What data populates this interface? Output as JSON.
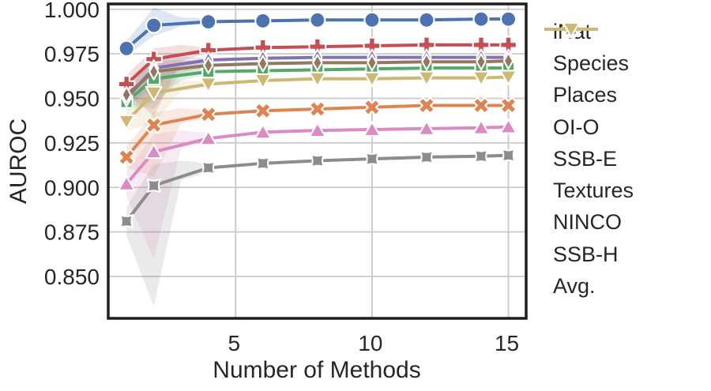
{
  "figure": {
    "background": "#ffffff"
  },
  "styles": {
    "grid_color": "#c9c9c9",
    "spine_color": "#1f1f1f",
    "text_color": "#262626",
    "marker_edge_color": "#ffffff",
    "band_opacity": 0.18,
    "line_width": 4
  },
  "chart_data": {
    "type": "line",
    "title": "",
    "xlabel": "Number of Methods",
    "ylabel": "AUROC",
    "grid": true,
    "legend_position": "right-outside",
    "xlim": [
      0.33,
      15.65
    ],
    "ylim": [
      0.8265,
      1.003
    ],
    "x": [
      1,
      2,
      4,
      6,
      8,
      10,
      12,
      14,
      15
    ],
    "xticks": [
      {
        "v": 5,
        "label": "5"
      },
      {
        "v": 10,
        "label": "10"
      },
      {
        "v": 15,
        "label": "15"
      }
    ],
    "yticks": [
      {
        "v": 0.85,
        "label": "0.850"
      },
      {
        "v": 0.875,
        "label": "0.875"
      },
      {
        "v": 0.9,
        "label": "0.900"
      },
      {
        "v": 0.925,
        "label": "0.925"
      },
      {
        "v": 0.95,
        "label": "0.950"
      },
      {
        "v": 0.975,
        "label": "0.975"
      },
      {
        "v": 1.0,
        "label": "1.000"
      }
    ],
    "series": [
      {
        "name": "iNat",
        "color": "#4C72B0",
        "marker": "circle",
        "values": [
          0.978,
          0.991,
          0.993,
          0.9935,
          0.994,
          0.994,
          0.994,
          0.9945,
          0.9945
        ],
        "band": {
          "x": [
            1,
            2,
            3,
            4
          ],
          "lo": [
            0.974,
            0.985,
            0.9905,
            0.9923
          ],
          "hi": [
            0.982,
            1.001,
            0.9955,
            0.9947
          ]
        }
      },
      {
        "name": "Species",
        "color": "#DD8452",
        "marker": "x",
        "values": [
          0.917,
          0.935,
          0.941,
          0.943,
          0.944,
          0.945,
          0.946,
          0.946,
          0.946
        ],
        "band": {
          "x": [
            1,
            2,
            3,
            4
          ],
          "lo": [
            0.911,
            0.906,
            0.936,
            0.939
          ],
          "hi": [
            0.923,
            0.942,
            0.9445,
            0.9435
          ]
        }
      },
      {
        "name": "Places",
        "color": "#55A868",
        "marker": "square",
        "values": [
          0.948,
          0.961,
          0.965,
          0.9655,
          0.966,
          0.9665,
          0.967,
          0.967,
          0.967
        ],
        "band": {
          "x": [
            1,
            2,
            3,
            4
          ],
          "lo": [
            0.943,
            0.948,
            0.96,
            0.9635
          ],
          "hi": [
            0.953,
            0.966,
            0.968,
            0.9665
          ]
        }
      },
      {
        "name": "OI-O",
        "color": "#C44E52",
        "marker": "plus",
        "values": [
          0.958,
          0.972,
          0.977,
          0.9785,
          0.979,
          0.9795,
          0.98,
          0.98,
          0.98
        ],
        "band": {
          "x": [
            1,
            2,
            3,
            4
          ],
          "lo": [
            0.953,
            0.94,
            0.971,
            0.9755
          ],
          "hi": [
            0.963,
            0.978,
            0.98,
            0.9785
          ]
        }
      },
      {
        "name": "SSB-E",
        "color": "#8172B3",
        "marker": "thin-diamond",
        "values": [
          0.95,
          0.967,
          0.9715,
          0.9725,
          0.973,
          0.973,
          0.973,
          0.973,
          0.973
        ],
        "band": {
          "x": [
            1,
            2,
            3,
            4
          ],
          "lo": [
            0.945,
            0.956,
            0.9665,
            0.9695
          ],
          "hi": [
            0.955,
            0.972,
            0.9735,
            0.9725
          ]
        }
      },
      {
        "name": "Textures",
        "color": "#937860",
        "marker": "thin-diamond",
        "values": [
          0.952,
          0.965,
          0.9685,
          0.9695,
          0.97,
          0.97,
          0.9705,
          0.9705,
          0.971
        ],
        "band": {
          "x": [
            1,
            2,
            3,
            4
          ],
          "lo": [
            0.947,
            0.944,
            0.964,
            0.9675
          ],
          "hi": [
            0.957,
            0.971,
            0.9715,
            0.9705
          ]
        }
      },
      {
        "name": "NINCO",
        "color": "#DA8BC3",
        "marker": "triangle-up",
        "values": [
          0.902,
          0.92,
          0.9275,
          0.931,
          0.932,
          0.9325,
          0.933,
          0.9335,
          0.934
        ],
        "band": {
          "x": [
            1,
            2,
            3,
            4
          ],
          "lo": [
            0.895,
            0.86,
            0.922,
            0.9255
          ],
          "hi": [
            0.909,
            0.93,
            0.932,
            0.9305
          ]
        }
      },
      {
        "name": "SSB-H",
        "color": "#8C8C8C",
        "marker": "star4",
        "values": [
          0.881,
          0.901,
          0.911,
          0.9135,
          0.915,
          0.916,
          0.917,
          0.9175,
          0.918
        ],
        "band": {
          "x": [
            1,
            2,
            3,
            4
          ],
          "lo": [
            0.873,
            0.833,
            0.904,
            0.9085
          ],
          "hi": [
            0.889,
            0.913,
            0.915,
            0.9135
          ]
        }
      },
      {
        "name": "Avg.",
        "color": "#CCB974",
        "marker": "triangle-down",
        "values": [
          0.937,
          0.953,
          0.958,
          0.96,
          0.961,
          0.961,
          0.9615,
          0.9615,
          0.962
        ],
        "band": {
          "x": [
            1,
            2,
            3,
            4
          ],
          "lo": [
            0.932,
            0.936,
            0.954,
            0.9565
          ],
          "hi": [
            0.942,
            0.959,
            0.96,
            0.9595
          ]
        }
      }
    ]
  }
}
